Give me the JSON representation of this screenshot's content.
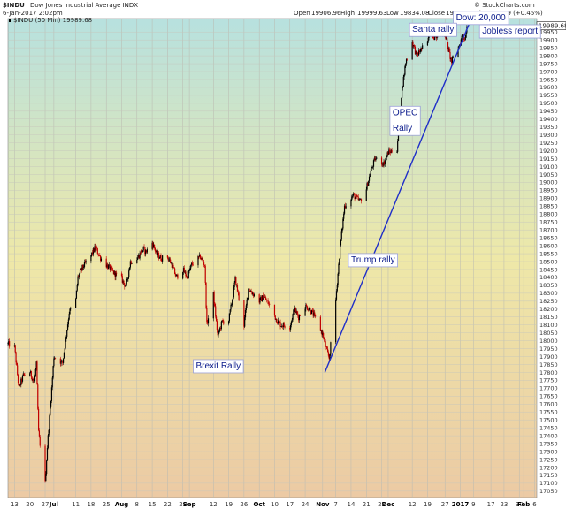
{
  "header": {
    "symbol": "$INDU",
    "name": "Dow Jones Industrial Average INDX",
    "date": "6-Jan-2017 2:02pm",
    "open_label": "Open",
    "open": "19906.96",
    "high_label": "High",
    "high": "19999.63",
    "low_label": "Low",
    "low": "19834.08",
    "close_label": "Close",
    "close": "19989.68",
    "chg_label": "Chg",
    "chg": "+90.39 (+0.45%)",
    "watermark": "© StockCharts.com",
    "legend": "$INDU (50 Min) 19989.68",
    "last_price": "19989.68"
  },
  "colors": {
    "up": "#000000",
    "down": "#c00000",
    "trendline": "#1f2ec8",
    "annotation": "#0a1a8c",
    "gradient_top": "#b7e1df",
    "gradient_mid": "#eee8a8",
    "gradient_bottom": "#eccaa4"
  },
  "annotations": [
    {
      "text": "Dow: 20,000",
      "x": "2017-01-01",
      "y": 20025
    },
    {
      "text": "Santa rally",
      "x": "2016-12-12",
      "y": 19950
    },
    {
      "text": "Jobless report",
      "x": "2017-01-13",
      "y": 19940
    },
    {
      "text": "OPEC",
      "x": "2016-12-03",
      "y": 19425
    },
    {
      "text": "Rally",
      "x": "2016-12-03",
      "y": 19325
    },
    {
      "text": "Trump rally",
      "x": "2016-11-14",
      "y": 18495
    },
    {
      "text": "Brexit Rally",
      "x": "2016-09-04",
      "y": 17825
    }
  ],
  "chart_data": {
    "type": "candlestick",
    "title": "$INDU Dow Jones Industrial Average INDX",
    "interval": "50 Min",
    "x_type": "date",
    "xlim": [
      "2016-06-10",
      "2017-02-07"
    ],
    "ylim": [
      17010,
      20035
    ],
    "y_axis_side": "right",
    "grid": true,
    "x_ticks": [
      {
        "label": "13",
        "x": "2016-06-13"
      },
      {
        "label": "20",
        "x": "2016-06-20"
      },
      {
        "label": "27",
        "x": "2016-06-27"
      },
      {
        "label": "Jul",
        "x": "2016-07-01",
        "bold": true
      },
      {
        "label": "11",
        "x": "2016-07-11"
      },
      {
        "label": "18",
        "x": "2016-07-18"
      },
      {
        "label": "25",
        "x": "2016-07-25"
      },
      {
        "label": "Aug",
        "x": "2016-08-01",
        "bold": true
      },
      {
        "label": "8",
        "x": "2016-08-08"
      },
      {
        "label": "15",
        "x": "2016-08-15"
      },
      {
        "label": "22",
        "x": "2016-08-22"
      },
      {
        "label": "29",
        "x": "2016-08-29"
      },
      {
        "label": "Sep",
        "x": "2016-09-01",
        "bold": true
      },
      {
        "label": "12",
        "x": "2016-09-12"
      },
      {
        "label": "19",
        "x": "2016-09-19"
      },
      {
        "label": "26",
        "x": "2016-09-26"
      },
      {
        "label": "Oct",
        "x": "2016-10-03",
        "bold": true
      },
      {
        "label": "10",
        "x": "2016-10-10"
      },
      {
        "label": "17",
        "x": "2016-10-17"
      },
      {
        "label": "24",
        "x": "2016-10-24"
      },
      {
        "label": "Nov",
        "x": "2016-11-01",
        "bold": true
      },
      {
        "label": "7",
        "x": "2016-11-07"
      },
      {
        "label": "14",
        "x": "2016-11-14"
      },
      {
        "label": "21",
        "x": "2016-11-21"
      },
      {
        "label": "28",
        "x": "2016-11-28"
      },
      {
        "label": "Dec",
        "x": "2016-12-01",
        "bold": true
      },
      {
        "label": "12",
        "x": "2016-12-12"
      },
      {
        "label": "19",
        "x": "2016-12-19"
      },
      {
        "label": "27",
        "x": "2016-12-27"
      },
      {
        "label": "2017",
        "x": "2017-01-03",
        "bold": true
      },
      {
        "label": "9",
        "x": "2017-01-09"
      },
      {
        "label": "17",
        "x": "2017-01-17"
      },
      {
        "label": "23",
        "x": "2017-01-23"
      },
      {
        "label": "30",
        "x": "2017-01-30"
      },
      {
        "label": "Feb",
        "x": "2017-02-01",
        "bold": true
      },
      {
        "label": "6",
        "x": "2017-02-06"
      }
    ],
    "y_ticks": [
      17050,
      17100,
      17150,
      17200,
      17250,
      17300,
      17350,
      17400,
      17450,
      17500,
      17550,
      17600,
      17650,
      17700,
      17750,
      17800,
      17850,
      17900,
      17950,
      18000,
      18050,
      18100,
      18150,
      18200,
      18250,
      18300,
      18350,
      18400,
      18450,
      18500,
      18550,
      18600,
      18650,
      18700,
      18750,
      18800,
      18850,
      18900,
      18950,
      19000,
      19050,
      19100,
      19150,
      19200,
      19250,
      19300,
      19350,
      19400,
      19450,
      19500,
      19550,
      19600,
      19650,
      19700,
      19750,
      19800,
      19850,
      19900,
      19950
    ],
    "price_path": [
      {
        "x": "2016-06-10",
        "y": 17980
      },
      {
        "x": "2016-06-13",
        "y": 17960
      },
      {
        "x": "2016-06-15",
        "y": 17700
      },
      {
        "x": "2016-06-17",
        "y": 17780
      },
      {
        "x": "2016-06-20",
        "y": 17800
      },
      {
        "x": "2016-06-22",
        "y": 17740
      },
      {
        "x": "2016-06-23",
        "y": 17850
      },
      {
        "x": "2016-06-24",
        "y": 17420
      },
      {
        "x": "2016-06-27",
        "y": 17100
      },
      {
        "x": "2016-06-28",
        "y": 17330
      },
      {
        "x": "2016-06-30",
        "y": 17700
      },
      {
        "x": "2016-07-01",
        "y": 17900
      },
      {
        "x": "2016-07-05",
        "y": 17860
      },
      {
        "x": "2016-07-08",
        "y": 18180
      },
      {
        "x": "2016-07-11",
        "y": 18260
      },
      {
        "x": "2016-07-12",
        "y": 18400
      },
      {
        "x": "2016-07-14",
        "y": 18460
      },
      {
        "x": "2016-07-18",
        "y": 18540
      },
      {
        "x": "2016-07-20",
        "y": 18590
      },
      {
        "x": "2016-07-22",
        "y": 18530
      },
      {
        "x": "2016-07-25",
        "y": 18480
      },
      {
        "x": "2016-07-27",
        "y": 18450
      },
      {
        "x": "2016-07-29",
        "y": 18420
      },
      {
        "x": "2016-08-01",
        "y": 18390
      },
      {
        "x": "2016-08-03",
        "y": 18340
      },
      {
        "x": "2016-08-05",
        "y": 18500
      },
      {
        "x": "2016-08-08",
        "y": 18520
      },
      {
        "x": "2016-08-11",
        "y": 18580
      },
      {
        "x": "2016-08-12",
        "y": 18560
      },
      {
        "x": "2016-08-15",
        "y": 18620
      },
      {
        "x": "2016-08-17",
        "y": 18550
      },
      {
        "x": "2016-08-19",
        "y": 18520
      },
      {
        "x": "2016-08-22",
        "y": 18530
      },
      {
        "x": "2016-08-24",
        "y": 18480
      },
      {
        "x": "2016-08-26",
        "y": 18400
      },
      {
        "x": "2016-08-29",
        "y": 18450
      },
      {
        "x": "2016-08-31",
        "y": 18400
      },
      {
        "x": "2016-09-02",
        "y": 18480
      },
      {
        "x": "2016-09-06",
        "y": 18530
      },
      {
        "x": "2016-09-08",
        "y": 18480
      },
      {
        "x": "2016-09-09",
        "y": 18100
      },
      {
        "x": "2016-09-12",
        "y": 18290
      },
      {
        "x": "2016-09-14",
        "y": 18030
      },
      {
        "x": "2016-09-16",
        "y": 18120
      },
      {
        "x": "2016-09-19",
        "y": 18130
      },
      {
        "x": "2016-09-21",
        "y": 18290
      },
      {
        "x": "2016-09-22",
        "y": 18390
      },
      {
        "x": "2016-09-26",
        "y": 18100
      },
      {
        "x": "2016-09-28",
        "y": 18330
      },
      {
        "x": "2016-09-30",
        "y": 18300
      },
      {
        "x": "2016-10-03",
        "y": 18250
      },
      {
        "x": "2016-10-05",
        "y": 18280
      },
      {
        "x": "2016-10-07",
        "y": 18240
      },
      {
        "x": "2016-10-11",
        "y": 18130
      },
      {
        "x": "2016-10-13",
        "y": 18100
      },
      {
        "x": "2016-10-17",
        "y": 18090
      },
      {
        "x": "2016-10-19",
        "y": 18200
      },
      {
        "x": "2016-10-21",
        "y": 18150
      },
      {
        "x": "2016-10-24",
        "y": 18220
      },
      {
        "x": "2016-10-26",
        "y": 18200
      },
      {
        "x": "2016-10-28",
        "y": 18160
      },
      {
        "x": "2016-11-01",
        "y": 18040
      },
      {
        "x": "2016-11-03",
        "y": 17930
      },
      {
        "x": "2016-11-04",
        "y": 17890
      },
      {
        "x": "2016-11-07",
        "y": 18260
      },
      {
        "x": "2016-11-09",
        "y": 18590
      },
      {
        "x": "2016-11-11",
        "y": 18850
      },
      {
        "x": "2016-11-15",
        "y": 18920
      },
      {
        "x": "2016-11-18",
        "y": 18880
      },
      {
        "x": "2016-11-21",
        "y": 18960
      },
      {
        "x": "2016-11-23",
        "y": 19070
      },
      {
        "x": "2016-11-25",
        "y": 19150
      },
      {
        "x": "2016-11-29",
        "y": 19120
      },
      {
        "x": "2016-12-01",
        "y": 19190
      },
      {
        "x": "2016-12-05",
        "y": 19210
      },
      {
        "x": "2016-12-07",
        "y": 19550
      },
      {
        "x": "2016-12-09",
        "y": 19760
      },
      {
        "x": "2016-12-12",
        "y": 19890
      },
      {
        "x": "2016-12-14",
        "y": 19800
      },
      {
        "x": "2016-12-16",
        "y": 19840
      },
      {
        "x": "2016-12-19",
        "y": 19880
      },
      {
        "x": "2016-12-20",
        "y": 19970
      },
      {
        "x": "2016-12-22",
        "y": 19920
      },
      {
        "x": "2016-12-27",
        "y": 19940
      },
      {
        "x": "2016-12-29",
        "y": 19810
      },
      {
        "x": "2016-12-30",
        "y": 19760
      },
      {
        "x": "2017-01-03",
        "y": 19880
      },
      {
        "x": "2017-01-04",
        "y": 19940
      },
      {
        "x": "2017-01-05",
        "y": 19900
      },
      {
        "x": "2017-01-06",
        "y": 19990
      }
    ],
    "trendline": [
      {
        "x": "2016-11-02",
        "y": 17800
      },
      {
        "x": "2017-01-07",
        "y": 20000
      }
    ],
    "legend": "$INDU (50 Min) 19989.68"
  }
}
